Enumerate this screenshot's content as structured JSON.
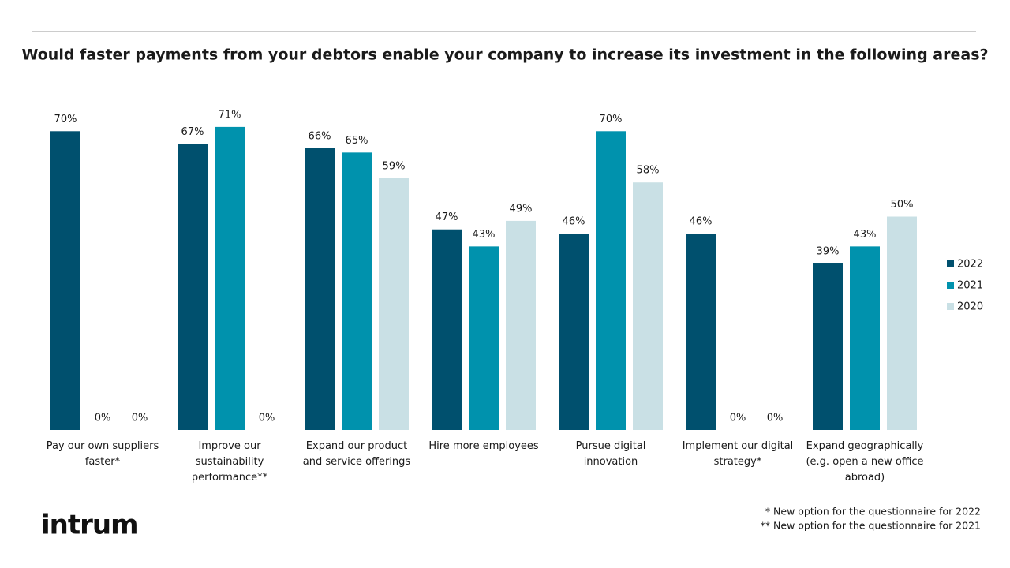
{
  "logo": "intrum",
  "footnotes": [
    "* New option for the questionnaire for 2022",
    "** New option for the questionnaire for 2021"
  ],
  "chart_data": {
    "type": "bar",
    "title": "Would faster payments from your debtors enable your company to increase its investment in the following areas?",
    "categories": [
      "Pay our own suppliers\nfaster*",
      "Improve our\nsustainability\nperformance**",
      "Expand our product\nand service offerings",
      "Hire more employees",
      "Pursue digital\ninnovation",
      "Implement our digital\nstrategy*",
      "Expand geographically\n(e.g. open a new office\nabroad)"
    ],
    "series": [
      {
        "name": "2022",
        "color": "#00506e",
        "values": [
          70,
          67,
          66,
          47,
          46,
          46,
          39
        ],
        "value_labels": [
          "70%",
          "67%",
          "66%",
          "47%",
          "46%",
          "46%",
          "39%"
        ]
      },
      {
        "name": "2021",
        "color": "#0092ad",
        "values": [
          0,
          71,
          65,
          43,
          70,
          0,
          43
        ],
        "value_labels": [
          "0%",
          "71%",
          "65%",
          "43%",
          "70%",
          "0%",
          "43%"
        ]
      },
      {
        "name": "2020",
        "color": "#c9e0e5",
        "values": [
          0,
          0,
          59,
          49,
          58,
          0,
          50
        ],
        "value_labels": [
          "0%",
          "0%",
          "59%",
          "49%",
          "58%",
          "0%",
          "50%"
        ]
      }
    ],
    "ylim": [
      0,
      100
    ],
    "legend": "right"
  }
}
